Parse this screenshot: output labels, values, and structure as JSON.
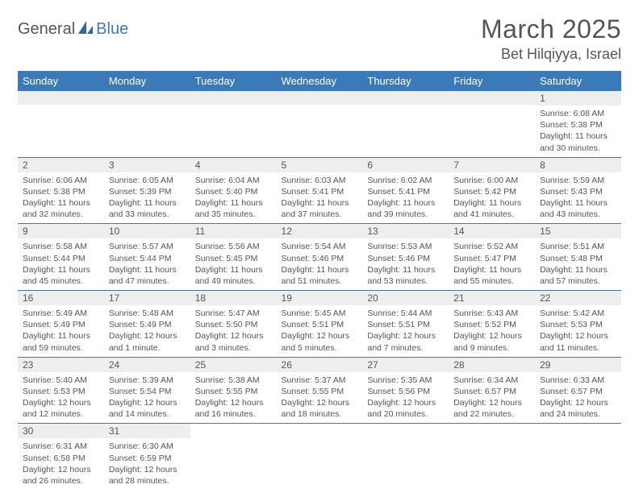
{
  "brand": {
    "part1": "General",
    "part2": "Blue"
  },
  "title": "March 2025",
  "location": "Bet Hilqiyya, Israel",
  "colors": {
    "header_bg": "#3a7ab8",
    "header_fg": "#ffffff",
    "daynum_bg": "#eeeeee",
    "border": "#3a7ab8",
    "text": "#555555",
    "background": "#ffffff"
  },
  "weekdays": [
    "Sunday",
    "Monday",
    "Tuesday",
    "Wednesday",
    "Thursday",
    "Friday",
    "Saturday"
  ],
  "weeks": [
    [
      {
        "n": "",
        "sunrise": "",
        "sunset": "",
        "daylight": ""
      },
      {
        "n": "",
        "sunrise": "",
        "sunset": "",
        "daylight": ""
      },
      {
        "n": "",
        "sunrise": "",
        "sunset": "",
        "daylight": ""
      },
      {
        "n": "",
        "sunrise": "",
        "sunset": "",
        "daylight": ""
      },
      {
        "n": "",
        "sunrise": "",
        "sunset": "",
        "daylight": ""
      },
      {
        "n": "",
        "sunrise": "",
        "sunset": "",
        "daylight": ""
      },
      {
        "n": "1",
        "sunrise": "Sunrise: 6:08 AM",
        "sunset": "Sunset: 5:38 PM",
        "daylight": "Daylight: 11 hours and 30 minutes."
      }
    ],
    [
      {
        "n": "2",
        "sunrise": "Sunrise: 6:06 AM",
        "sunset": "Sunset: 5:38 PM",
        "daylight": "Daylight: 11 hours and 32 minutes."
      },
      {
        "n": "3",
        "sunrise": "Sunrise: 6:05 AM",
        "sunset": "Sunset: 5:39 PM",
        "daylight": "Daylight: 11 hours and 33 minutes."
      },
      {
        "n": "4",
        "sunrise": "Sunrise: 6:04 AM",
        "sunset": "Sunset: 5:40 PM",
        "daylight": "Daylight: 11 hours and 35 minutes."
      },
      {
        "n": "5",
        "sunrise": "Sunrise: 6:03 AM",
        "sunset": "Sunset: 5:41 PM",
        "daylight": "Daylight: 11 hours and 37 minutes."
      },
      {
        "n": "6",
        "sunrise": "Sunrise: 6:02 AM",
        "sunset": "Sunset: 5:41 PM",
        "daylight": "Daylight: 11 hours and 39 minutes."
      },
      {
        "n": "7",
        "sunrise": "Sunrise: 6:00 AM",
        "sunset": "Sunset: 5:42 PM",
        "daylight": "Daylight: 11 hours and 41 minutes."
      },
      {
        "n": "8",
        "sunrise": "Sunrise: 5:59 AM",
        "sunset": "Sunset: 5:43 PM",
        "daylight": "Daylight: 11 hours and 43 minutes."
      }
    ],
    [
      {
        "n": "9",
        "sunrise": "Sunrise: 5:58 AM",
        "sunset": "Sunset: 5:44 PM",
        "daylight": "Daylight: 11 hours and 45 minutes."
      },
      {
        "n": "10",
        "sunrise": "Sunrise: 5:57 AM",
        "sunset": "Sunset: 5:44 PM",
        "daylight": "Daylight: 11 hours and 47 minutes."
      },
      {
        "n": "11",
        "sunrise": "Sunrise: 5:56 AM",
        "sunset": "Sunset: 5:45 PM",
        "daylight": "Daylight: 11 hours and 49 minutes."
      },
      {
        "n": "12",
        "sunrise": "Sunrise: 5:54 AM",
        "sunset": "Sunset: 5:46 PM",
        "daylight": "Daylight: 11 hours and 51 minutes."
      },
      {
        "n": "13",
        "sunrise": "Sunrise: 5:53 AM",
        "sunset": "Sunset: 5:46 PM",
        "daylight": "Daylight: 11 hours and 53 minutes."
      },
      {
        "n": "14",
        "sunrise": "Sunrise: 5:52 AM",
        "sunset": "Sunset: 5:47 PM",
        "daylight": "Daylight: 11 hours and 55 minutes."
      },
      {
        "n": "15",
        "sunrise": "Sunrise: 5:51 AM",
        "sunset": "Sunset: 5:48 PM",
        "daylight": "Daylight: 11 hours and 57 minutes."
      }
    ],
    [
      {
        "n": "16",
        "sunrise": "Sunrise: 5:49 AM",
        "sunset": "Sunset: 5:49 PM",
        "daylight": "Daylight: 11 hours and 59 minutes."
      },
      {
        "n": "17",
        "sunrise": "Sunrise: 5:48 AM",
        "sunset": "Sunset: 5:49 PM",
        "daylight": "Daylight: 12 hours and 1 minute."
      },
      {
        "n": "18",
        "sunrise": "Sunrise: 5:47 AM",
        "sunset": "Sunset: 5:50 PM",
        "daylight": "Daylight: 12 hours and 3 minutes."
      },
      {
        "n": "19",
        "sunrise": "Sunrise: 5:45 AM",
        "sunset": "Sunset: 5:51 PM",
        "daylight": "Daylight: 12 hours and 5 minutes."
      },
      {
        "n": "20",
        "sunrise": "Sunrise: 5:44 AM",
        "sunset": "Sunset: 5:51 PM",
        "daylight": "Daylight: 12 hours and 7 minutes."
      },
      {
        "n": "21",
        "sunrise": "Sunrise: 5:43 AM",
        "sunset": "Sunset: 5:52 PM",
        "daylight": "Daylight: 12 hours and 9 minutes."
      },
      {
        "n": "22",
        "sunrise": "Sunrise: 5:42 AM",
        "sunset": "Sunset: 5:53 PM",
        "daylight": "Daylight: 12 hours and 11 minutes."
      }
    ],
    [
      {
        "n": "23",
        "sunrise": "Sunrise: 5:40 AM",
        "sunset": "Sunset: 5:53 PM",
        "daylight": "Daylight: 12 hours and 12 minutes."
      },
      {
        "n": "24",
        "sunrise": "Sunrise: 5:39 AM",
        "sunset": "Sunset: 5:54 PM",
        "daylight": "Daylight: 12 hours and 14 minutes."
      },
      {
        "n": "25",
        "sunrise": "Sunrise: 5:38 AM",
        "sunset": "Sunset: 5:55 PM",
        "daylight": "Daylight: 12 hours and 16 minutes."
      },
      {
        "n": "26",
        "sunrise": "Sunrise: 5:37 AM",
        "sunset": "Sunset: 5:55 PM",
        "daylight": "Daylight: 12 hours and 18 minutes."
      },
      {
        "n": "27",
        "sunrise": "Sunrise: 5:35 AM",
        "sunset": "Sunset: 5:56 PM",
        "daylight": "Daylight: 12 hours and 20 minutes."
      },
      {
        "n": "28",
        "sunrise": "Sunrise: 6:34 AM",
        "sunset": "Sunset: 6:57 PM",
        "daylight": "Daylight: 12 hours and 22 minutes."
      },
      {
        "n": "29",
        "sunrise": "Sunrise: 6:33 AM",
        "sunset": "Sunset: 6:57 PM",
        "daylight": "Daylight: 12 hours and 24 minutes."
      }
    ],
    [
      {
        "n": "30",
        "sunrise": "Sunrise: 6:31 AM",
        "sunset": "Sunset: 6:58 PM",
        "daylight": "Daylight: 12 hours and 26 minutes."
      },
      {
        "n": "31",
        "sunrise": "Sunrise: 6:30 AM",
        "sunset": "Sunset: 6:59 PM",
        "daylight": "Daylight: 12 hours and 28 minutes."
      },
      {
        "n": "",
        "sunrise": "",
        "sunset": "",
        "daylight": ""
      },
      {
        "n": "",
        "sunrise": "",
        "sunset": "",
        "daylight": ""
      },
      {
        "n": "",
        "sunrise": "",
        "sunset": "",
        "daylight": ""
      },
      {
        "n": "",
        "sunrise": "",
        "sunset": "",
        "daylight": ""
      },
      {
        "n": "",
        "sunrise": "",
        "sunset": "",
        "daylight": ""
      }
    ]
  ]
}
